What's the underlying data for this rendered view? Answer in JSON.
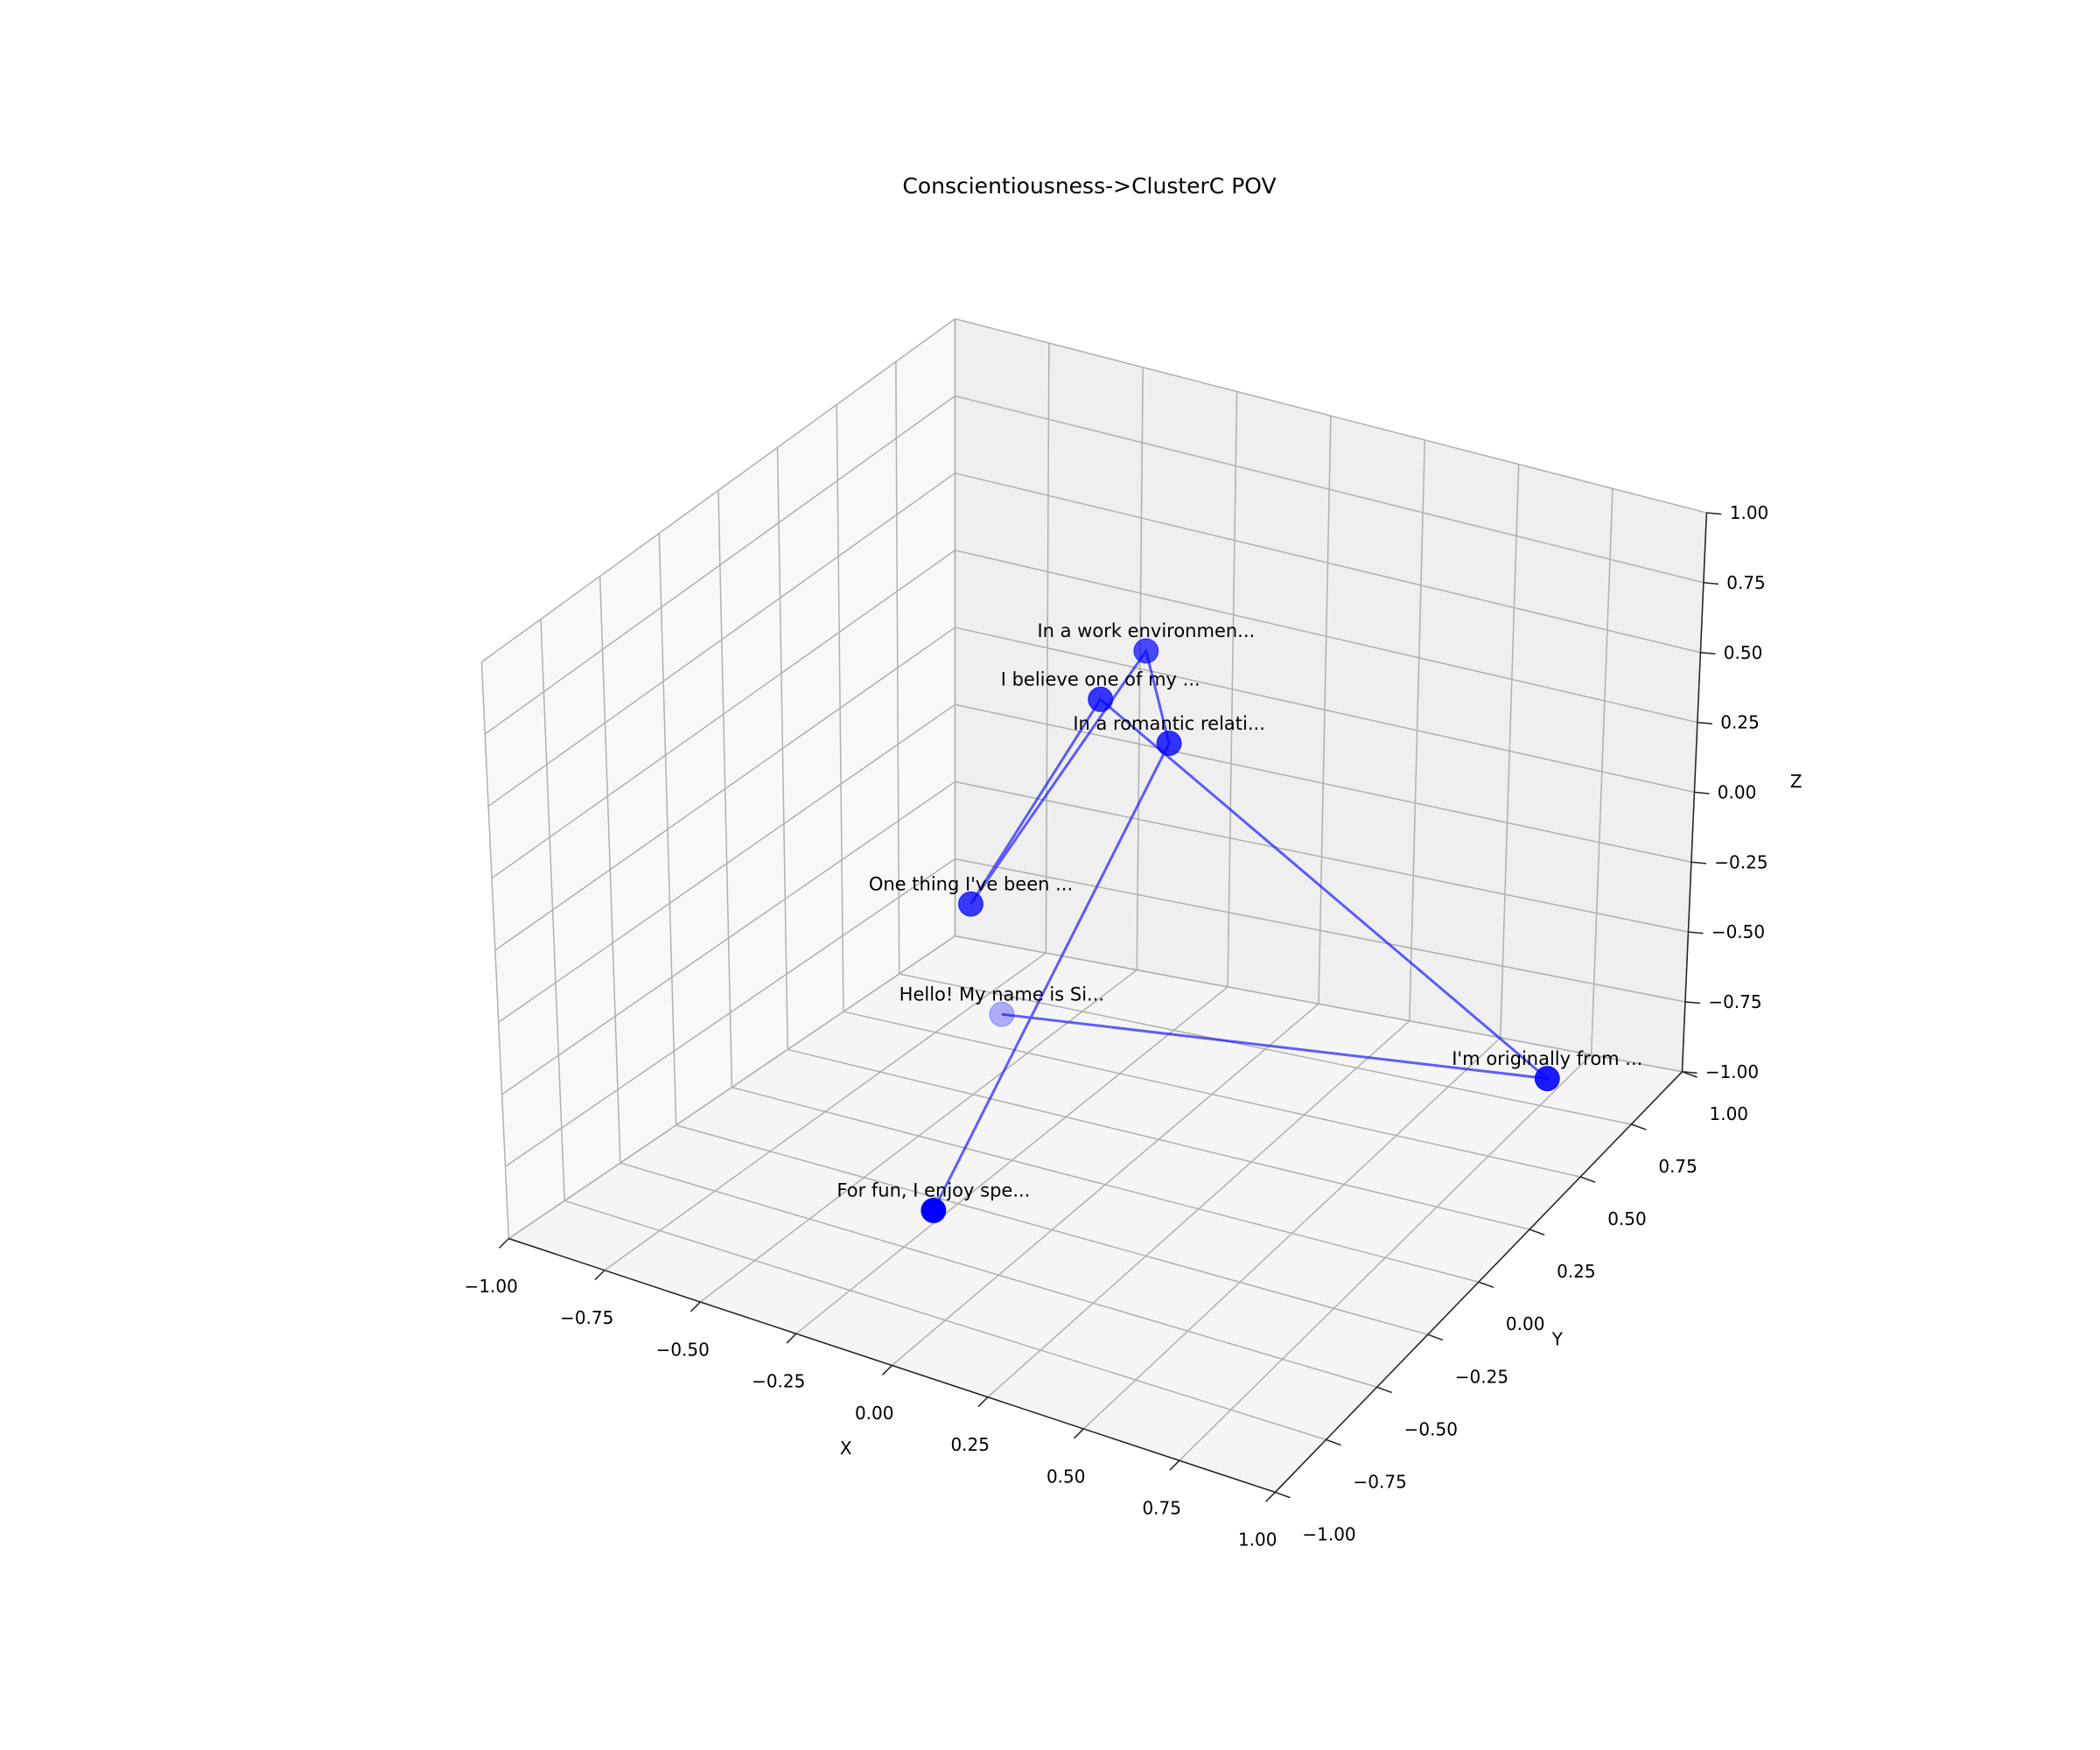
{
  "chart_data": {
    "type": "scatter3d",
    "title": "Conscientiousness->ClusterC POV",
    "labels": [
      "Hello! My name is Si...",
      "I'm originally from ...",
      "I believe one of my ...",
      "One thing I've been ...",
      "In a work environmen...",
      "In a romantic relati...",
      "For fun, I enjoy spe..."
    ],
    "x": [
      -0.57,
      0.85,
      0.0,
      -0.23,
      0.0,
      0.12,
      -0.11
    ],
    "y": [
      0.5,
      0.6,
      0.0,
      -0.2,
      0.2,
      0.1,
      -0.6
    ],
    "z": [
      -0.89,
      -0.77,
      0.66,
      0.0,
      0.7,
      0.49,
      -0.76
    ],
    "color": "#0000ff",
    "xlabel": "X",
    "ylabel": "Y",
    "zlabel": "Z",
    "xlim": [
      -1,
      1
    ],
    "ylim": [
      -1,
      1
    ],
    "zlim": [
      -1,
      1
    ],
    "xticks": [
      {
        "value": -1,
        "label": "−1.00"
      },
      {
        "value": -0.75,
        "label": "−0.75"
      },
      {
        "value": -0.5,
        "label": "−0.50"
      },
      {
        "value": -0.25,
        "label": "−0.25"
      },
      {
        "value": 0,
        "label": "0.00"
      },
      {
        "value": 0.25,
        "label": "0.25"
      },
      {
        "value": 0.5,
        "label": "0.50"
      },
      {
        "value": 0.75,
        "label": "0.75"
      },
      {
        "value": 1,
        "label": "1.00"
      }
    ],
    "yticks": [
      {
        "value": -1,
        "label": "−1.00"
      },
      {
        "value": -0.75,
        "label": "−0.75"
      },
      {
        "value": -0.5,
        "label": "−0.50"
      },
      {
        "value": -0.25,
        "label": "−0.25"
      },
      {
        "value": 0,
        "label": "0.00"
      },
      {
        "value": 0.25,
        "label": "0.25"
      },
      {
        "value": 0.5,
        "label": "0.50"
      },
      {
        "value": 0.75,
        "label": "0.75"
      },
      {
        "value": 1,
        "label": "1.00"
      }
    ],
    "zticks": [
      {
        "value": -1,
        "label": "−1.00"
      },
      {
        "value": -0.75,
        "label": "−0.75"
      },
      {
        "value": -0.5,
        "label": "−0.50"
      },
      {
        "value": -0.25,
        "label": "−0.25"
      },
      {
        "value": 0,
        "label": "0.00"
      },
      {
        "value": 0.25,
        "label": "0.25"
      },
      {
        "value": 0.5,
        "label": "0.50"
      },
      {
        "value": 0.75,
        "label": "0.75"
      },
      {
        "value": 1,
        "label": "1.00"
      }
    ],
    "grid": true
  }
}
